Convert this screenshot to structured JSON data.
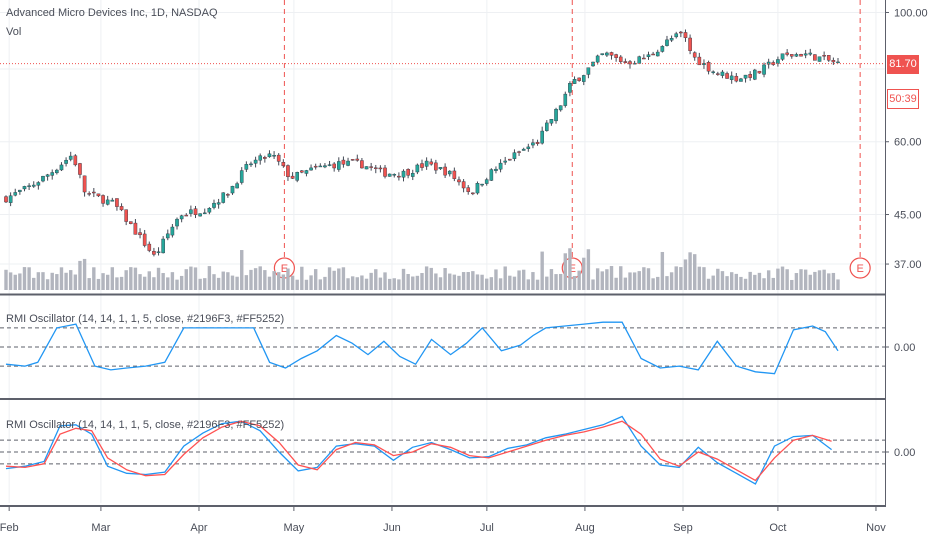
{
  "legend": {
    "symbol": "Advanced Micro Devices Inc, 1D, NASDAQ",
    "volume": "Vol",
    "rmi_pane1": "RMI Oscillator (14, 14, 1, 1, 5, close, #2196F3, #FF5252)",
    "rmi_pane2": "RMI Oscillator (14, 14, 1, 1, 5, close, #2196F3, #FF5252)"
  },
  "badges": {
    "last_price": "81.70",
    "countdown": "50:39"
  },
  "earnings_marker": "E",
  "colors": {
    "up": "#26a69a",
    "down": "#ef5350",
    "rmi": "#2196F3",
    "signal": "#FF5252",
    "volume": "#b2b5be"
  },
  "chart_data": [
    {
      "type": "candlestick",
      "title": "Advanced Micro Devices Inc, 1D, NASDAQ",
      "y_scale": "log",
      "ylim": [
        33,
        103
      ],
      "y_ticks": [
        "100.00",
        "60.00",
        "45.00",
        "37.00"
      ],
      "last_price": 81.7,
      "x_ticks": [
        "Feb",
        "Mar",
        "Apr",
        "May",
        "Jun",
        "Jul",
        "Aug",
        "Sep",
        "Oct",
        "Nov"
      ],
      "earnings": [
        "Apr 25",
        "Jul 30",
        "Oct 29"
      ],
      "close_path": [
        {
          "d": "2020-01-31",
          "c": 48
        },
        {
          "d": "2020-02-07",
          "c": 50
        },
        {
          "d": "2020-02-14",
          "c": 53
        },
        {
          "d": "2020-02-21",
          "c": 57
        },
        {
          "d": "2020-02-25",
          "c": 49
        },
        {
          "d": "2020-03-05",
          "c": 47
        },
        {
          "d": "2020-03-12",
          "c": 42
        },
        {
          "d": "2020-03-18",
          "c": 38
        },
        {
          "d": "2020-03-26",
          "c": 45
        },
        {
          "d": "2020-04-03",
          "c": 46
        },
        {
          "d": "2020-04-10",
          "c": 49
        },
        {
          "d": "2020-04-17",
          "c": 55
        },
        {
          "d": "2020-04-24",
          "c": 57
        },
        {
          "d": "2020-04-30",
          "c": 52
        },
        {
          "d": "2020-05-08",
          "c": 54
        },
        {
          "d": "2020-05-15",
          "c": 55
        },
        {
          "d": "2020-05-22",
          "c": 55
        },
        {
          "d": "2020-05-29",
          "c": 53
        },
        {
          "d": "2020-06-05",
          "c": 53
        },
        {
          "d": "2020-06-12",
          "c": 55
        },
        {
          "d": "2020-06-19",
          "c": 53
        },
        {
          "d": "2020-06-26",
          "c": 49
        },
        {
          "d": "2020-07-02",
          "c": 53
        },
        {
          "d": "2020-07-10",
          "c": 57
        },
        {
          "d": "2020-07-17",
          "c": 60
        },
        {
          "d": "2020-07-24",
          "c": 69
        },
        {
          "d": "2020-07-28",
          "c": 76
        },
        {
          "d": "2020-07-31",
          "c": 78
        },
        {
          "d": "2020-08-07",
          "c": 85
        },
        {
          "d": "2020-08-14",
          "c": 82
        },
        {
          "d": "2020-08-21",
          "c": 84
        },
        {
          "d": "2020-08-28",
          "c": 90
        },
        {
          "d": "2020-09-01",
          "c": 92
        },
        {
          "d": "2020-09-04",
          "c": 84
        },
        {
          "d": "2020-09-11",
          "c": 79
        },
        {
          "d": "2020-09-18",
          "c": 77
        },
        {
          "d": "2020-09-25",
          "c": 79
        },
        {
          "d": "2020-10-02",
          "c": 84
        },
        {
          "d": "2020-10-09",
          "c": 85
        },
        {
          "d": "2020-10-16",
          "c": 83
        },
        {
          "d": "2020-10-20",
          "c": 81.7
        }
      ]
    },
    {
      "type": "line",
      "title": "RMI Oscillator (14, 14, 1, 1, 5, close, #2196F3, #FF5252)",
      "ylim": [
        -2.2,
        2.2
      ],
      "y_ticks": [
        "0.00"
      ],
      "levels": [
        1,
        0,
        -1
      ],
      "series": [
        {
          "name": "RMI",
          "color": "#2196F3",
          "x": [
            0,
            6,
            10,
            16,
            22,
            28,
            33,
            38,
            44,
            50,
            56,
            62,
            67,
            72,
            78,
            83,
            88,
            93,
            98,
            104,
            109,
            114,
            119,
            124,
            129,
            134,
            140,
            145,
            150,
            156,
            162,
            166,
            170,
            176,
            182,
            188,
            194,
            200,
            206,
            212,
            218,
            224,
            230,
            236,
            242,
            248,
            254,
            258,
            262
          ],
          "y": [
            -0.9,
            -1.0,
            -0.8,
            1.0,
            1.2,
            -1.0,
            -1.2,
            -1.1,
            -1.0,
            -0.8,
            1.0,
            1.0,
            1.0,
            1.0,
            1.0,
            -0.8,
            -1.1,
            -0.6,
            -0.2,
            0.6,
            0.2,
            -0.4,
            0.3,
            -0.5,
            -0.9,
            0.4,
            -0.4,
            0.2,
            1.0,
            -0.2,
            0.1,
            0.6,
            1.0,
            1.1,
            1.2,
            1.3,
            1.3,
            -0.6,
            -1.1,
            -1.0,
            -1.2,
            0.3,
            -1.0,
            -1.3,
            -1.4,
            0.9,
            1.1,
            0.8,
            -0.2
          ]
        }
      ]
    },
    {
      "type": "line",
      "title": "RMI Oscillator (14, 14, 1, 1, 5, close, #2196F3, #FF5252)",
      "ylim": [
        -3.8,
        3.8
      ],
      "y_ticks": [
        "0.00"
      ],
      "levels": [
        1,
        0,
        -1
      ],
      "series": [
        {
          "name": "RMI",
          "color": "#2196F3",
          "x": [
            0,
            6,
            12,
            17,
            22,
            27,
            32,
            38,
            44,
            50,
            56,
            62,
            68,
            74,
            80,
            86,
            92,
            98,
            104,
            110,
            116,
            122,
            128,
            134,
            140,
            146,
            152,
            158,
            164,
            170,
            176,
            182,
            188,
            194,
            200,
            206,
            212,
            218,
            224,
            230,
            236,
            242,
            248,
            254,
            260
          ],
          "y": [
            -1.4,
            -1.2,
            -0.8,
            2.2,
            2.3,
            1.5,
            -1.2,
            -1.8,
            -1.9,
            -1.7,
            0.5,
            1.6,
            2.4,
            2.6,
            1.8,
            0.0,
            -1.6,
            -1.3,
            0.5,
            0.7,
            0.5,
            -0.7,
            0.4,
            0.8,
            0.2,
            -0.5,
            -0.4,
            0.3,
            0.6,
            1.2,
            1.5,
            1.9,
            2.3,
            3.0,
            0.5,
            -1.1,
            -1.3,
            0.4,
            -0.9,
            -1.8,
            -2.7,
            0.5,
            1.3,
            1.4,
            0.2
          ]
        },
        {
          "name": "Signal",
          "color": "#FF5252",
          "x": [
            0,
            6,
            12,
            17,
            22,
            27,
            32,
            38,
            44,
            50,
            56,
            62,
            68,
            74,
            80,
            86,
            92,
            98,
            104,
            110,
            116,
            122,
            128,
            134,
            140,
            146,
            152,
            158,
            164,
            170,
            176,
            182,
            188,
            194,
            200,
            206,
            212,
            218,
            224,
            230,
            236,
            242,
            248,
            254,
            260
          ],
          "y": [
            -1.2,
            -1.3,
            -1.0,
            1.5,
            2.0,
            1.8,
            -0.5,
            -1.5,
            -2.0,
            -1.9,
            -0.2,
            1.2,
            2.1,
            2.6,
            2.2,
            0.8,
            -1.1,
            -1.5,
            0.2,
            0.8,
            0.6,
            -0.3,
            0.0,
            0.7,
            0.4,
            -0.3,
            -0.5,
            0.0,
            0.5,
            1.0,
            1.4,
            1.7,
            2.1,
            2.6,
            1.5,
            -0.6,
            -1.2,
            0.0,
            -0.6,
            -1.5,
            -2.4,
            -0.5,
            1.0,
            1.4,
            0.9
          ]
        }
      ]
    }
  ]
}
